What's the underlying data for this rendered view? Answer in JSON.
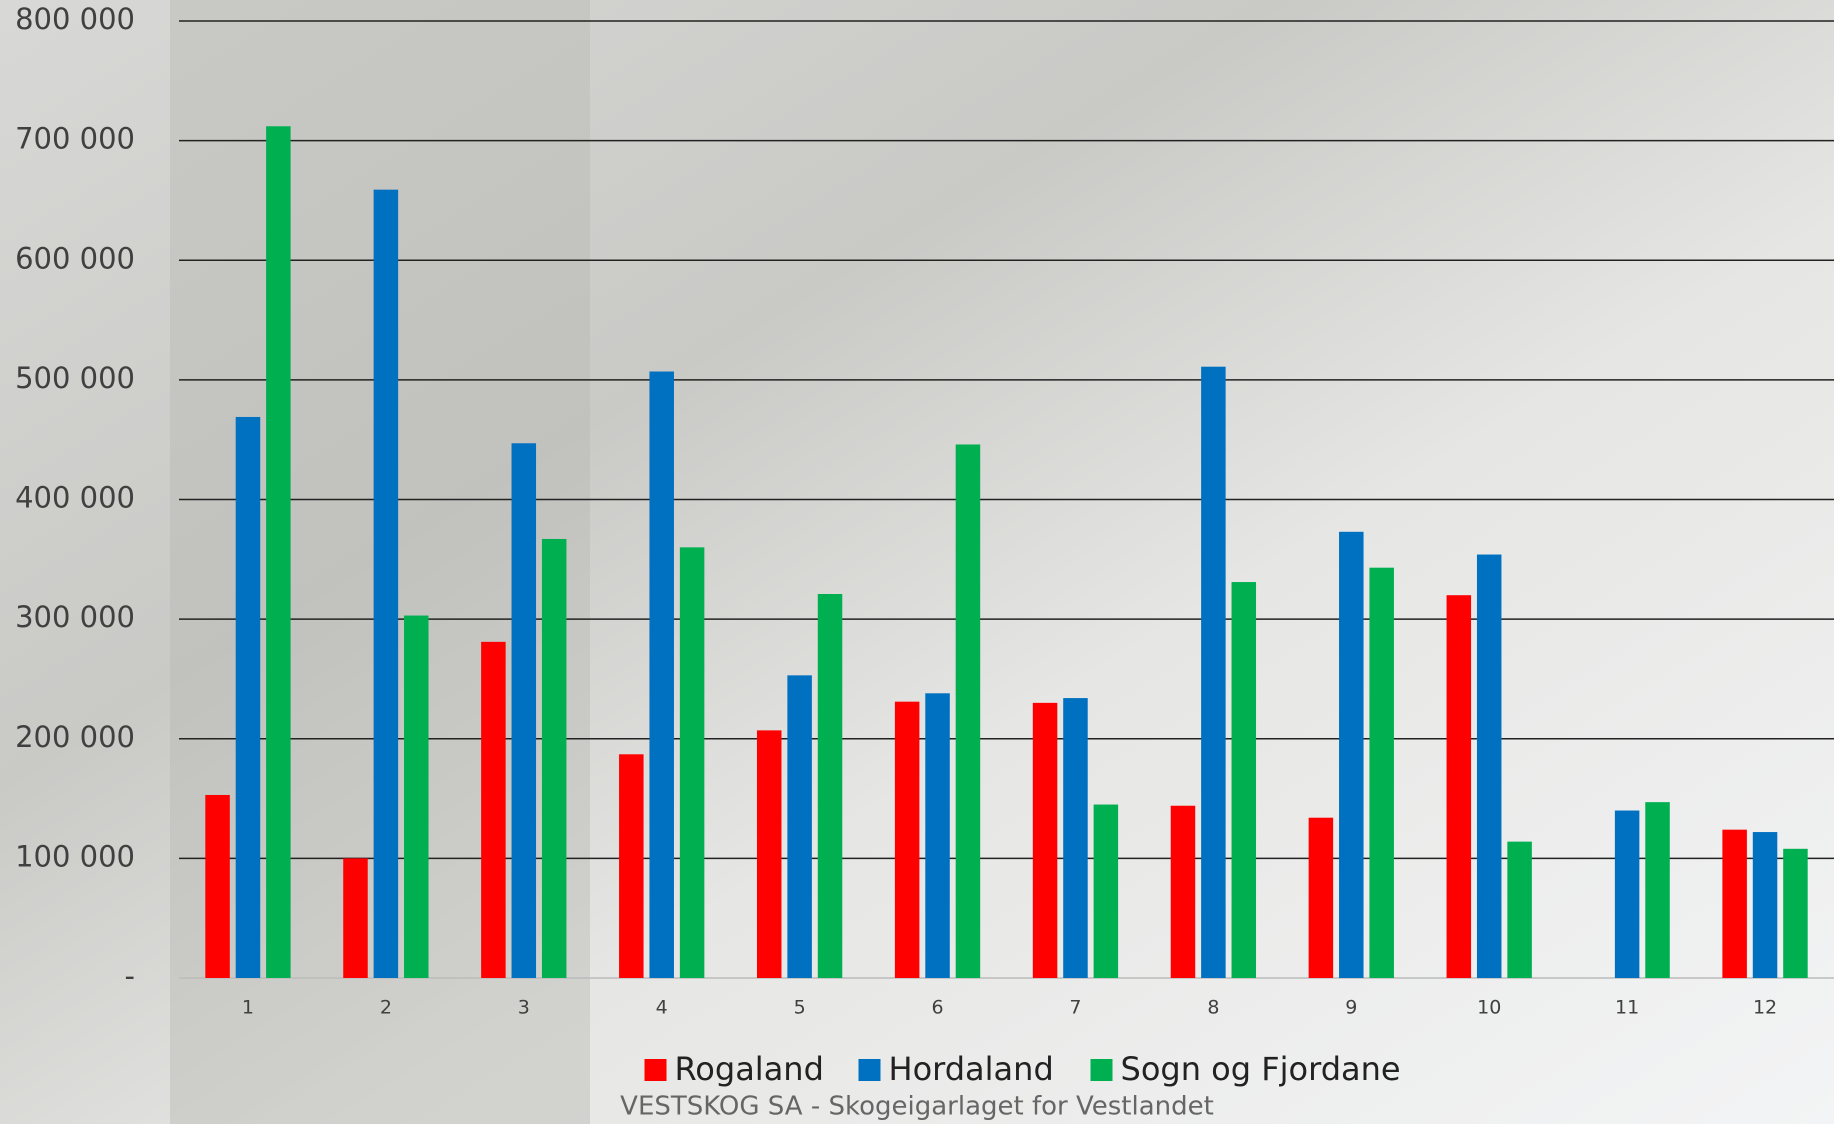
{
  "chart_data": {
    "type": "bar",
    "footer": "VESTSKOG SA - Skogeigarlaget for Vestlandet",
    "categories": [
      "1",
      "2",
      "3",
      "4",
      "5",
      "6",
      "7",
      "8",
      "9",
      "10",
      "11",
      "12"
    ],
    "series": [
      {
        "name": "Rogaland",
        "color": "#ff0000",
        "values": [
          153000,
          100000,
          281000,
          187000,
          207000,
          231000,
          230000,
          144000,
          134000,
          320000,
          null,
          124000
        ]
      },
      {
        "name": "Hordaland",
        "color": "#0070c0",
        "values": [
          469000,
          659000,
          447000,
          507000,
          253000,
          238000,
          234000,
          511000,
          373000,
          354000,
          140000,
          122000
        ]
      },
      {
        "name": "Sogn og Fjordane",
        "color": "#00b050",
        "values": [
          712000,
          303000,
          367000,
          360000,
          321000,
          446000,
          145000,
          331000,
          343000,
          114000,
          147000,
          108000
        ]
      }
    ],
    "ylim": [
      0,
      800000
    ],
    "yticks": [
      {
        "value": 0,
        "label": "-"
      },
      {
        "value": 100000,
        "label": "100 000"
      },
      {
        "value": 200000,
        "label": "200 000"
      },
      {
        "value": 300000,
        "label": "300 000"
      },
      {
        "value": 400000,
        "label": "400 000"
      },
      {
        "value": 500000,
        "label": "500 000"
      },
      {
        "value": 600000,
        "label": "600 000"
      },
      {
        "value": 700000,
        "label": "700 000"
      },
      {
        "value": 800000,
        "label": "800 000"
      }
    ],
    "grid": true,
    "legend": "bottom"
  }
}
